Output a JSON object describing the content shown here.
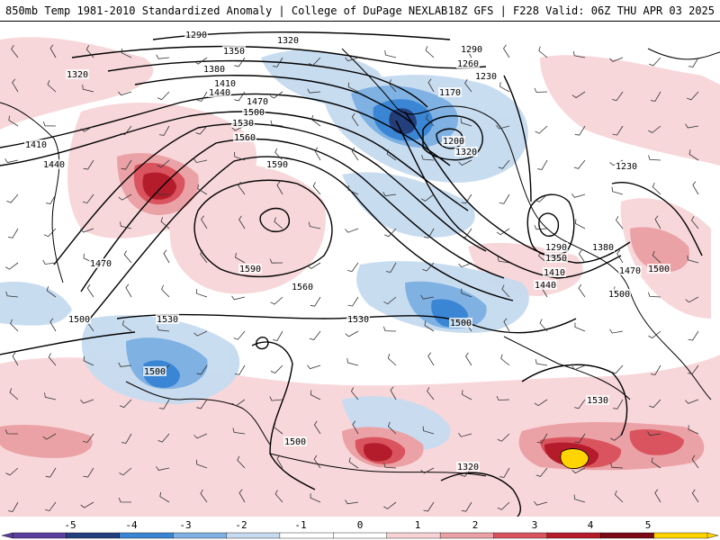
{
  "header": {
    "title_left": "850mb Temp 1981-2010 Standardized Anomaly | College of DuPage NEXLAB",
    "title_right": "18Z GFS | F228 Valid: 06Z THU APR 03 2025"
  },
  "colors": {
    "neg5": "#5b3f9e",
    "neg4": "#233f7d",
    "neg3": "#3b86d4",
    "neg2": "#7fb1e3",
    "neg1": "#c6dbf0",
    "neutral": "#ffffff",
    "pos1": "#f7d3d6",
    "pos2": "#eba2a6",
    "pos3": "#d9545e",
    "pos4": "#b51c2b",
    "pos5": "#7a0a16",
    "extreme": "#ffd400"
  },
  "colorbar": {
    "ticks": [
      "-5",
      "-4",
      "-3",
      "-2",
      "-1",
      "0",
      "1",
      "2",
      "3",
      "4",
      "5"
    ]
  },
  "contour_labels": [
    {
      "text": "1290"
    },
    {
      "text": "1320"
    },
    {
      "text": "1350"
    },
    {
      "text": "1380"
    },
    {
      "text": "1320"
    },
    {
      "text": "1410"
    },
    {
      "text": "1440"
    },
    {
      "text": "1470"
    },
    {
      "text": "1500"
    },
    {
      "text": "1530"
    },
    {
      "text": "1560"
    },
    {
      "text": "1590"
    },
    {
      "text": "1410"
    },
    {
      "text": "1440"
    },
    {
      "text": "1470"
    },
    {
      "text": "1590"
    },
    {
      "text": "1560"
    },
    {
      "text": "1530"
    },
    {
      "text": "1530"
    },
    {
      "text": "1500"
    },
    {
      "text": "1500"
    },
    {
      "text": "1500"
    },
    {
      "text": "1500"
    },
    {
      "text": "1320"
    },
    {
      "text": "1290"
    },
    {
      "text": "1260"
    },
    {
      "text": "1230"
    },
    {
      "text": "1170"
    },
    {
      "text": "1200"
    },
    {
      "text": "1320"
    },
    {
      "text": "1230"
    },
    {
      "text": "1290"
    },
    {
      "text": "1350"
    },
    {
      "text": "1380"
    },
    {
      "text": "1410"
    },
    {
      "text": "1440"
    },
    {
      "text": "1470"
    },
    {
      "text": "1500"
    },
    {
      "text": "1530"
    },
    {
      "text": "1500"
    }
  ]
}
